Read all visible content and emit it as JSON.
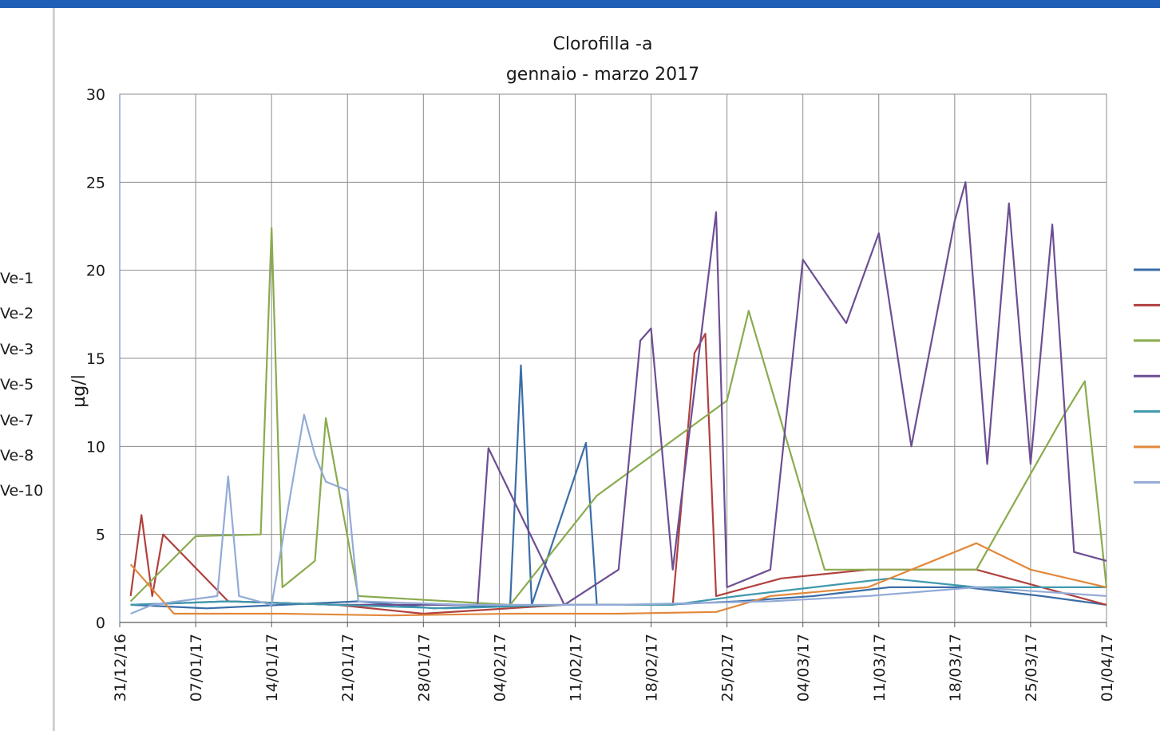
{
  "chart_data": {
    "type": "line",
    "title": "Clorofilla -a",
    "subtitle": "gennaio - marzo 2017",
    "ylabel": "µg/l",
    "xlabel": "",
    "ylim": [
      0,
      30
    ],
    "yticks": [
      0,
      5,
      10,
      15,
      20,
      25,
      30
    ],
    "xlim": [
      "2016-12-31",
      "2017-04-01"
    ],
    "xtick_labels": [
      "31/12/16",
      "07/01/17",
      "14/01/17",
      "21/01/17",
      "28/01/17",
      "04/02/17",
      "11/02/17",
      "18/02/17",
      "25/02/17",
      "04/03/17",
      "11/03/17",
      "18/03/17",
      "25/03/17",
      "01/04/17"
    ],
    "grid": true,
    "legend_position": "right",
    "series": [
      {
        "name": "Ve-1",
        "color": "#3a6ea8",
        "x": [
          "2017-01-01",
          "2017-01-08",
          "2017-01-15",
          "2017-01-22",
          "2017-01-29",
          "2017-02-05",
          "2017-02-06",
          "2017-02-07",
          "2017-02-12",
          "2017-02-13",
          "2017-02-19",
          "2017-02-26",
          "2017-03-05",
          "2017-03-12",
          "2017-03-19",
          "2017-03-26",
          "2017-04-01"
        ],
        "y": [
          1.0,
          0.8,
          1.0,
          1.2,
          0.8,
          1.0,
          14.6,
          1.0,
          10.2,
          1.0,
          1.0,
          1.2,
          1.5,
          2.0,
          2.0,
          1.5,
          1.0
        ]
      },
      {
        "name": "Ve-2",
        "color": "#b0413e",
        "x": [
          "2017-01-01",
          "2017-01-02",
          "2017-01-03",
          "2017-01-04",
          "2017-01-10",
          "2017-01-20",
          "2017-01-28",
          "2017-02-10",
          "2017-02-20",
          "2017-02-22",
          "2017-02-23",
          "2017-02-24",
          "2017-03-02",
          "2017-03-10",
          "2017-03-20",
          "2017-04-01"
        ],
        "y": [
          1.5,
          6.1,
          1.5,
          5.0,
          1.2,
          1.0,
          0.5,
          1.0,
          1.0,
          15.3,
          16.4,
          1.5,
          2.5,
          3.0,
          3.0,
          1.0
        ]
      },
      {
        "name": "Ve-3",
        "color": "#8aab4f",
        "x": [
          "2017-01-01",
          "2017-01-07",
          "2017-01-13",
          "2017-01-14",
          "2017-01-15",
          "2017-01-18",
          "2017-01-19",
          "2017-01-22",
          "2017-02-05",
          "2017-02-13",
          "2017-02-25",
          "2017-02-27",
          "2017-03-06",
          "2017-03-20",
          "2017-03-28",
          "2017-03-30",
          "2017-04-01"
        ],
        "y": [
          1.2,
          4.9,
          5.0,
          22.4,
          2.0,
          3.5,
          11.6,
          1.5,
          1.0,
          7.2,
          12.6,
          17.7,
          3.0,
          3.0,
          11.7,
          13.7,
          2.0
        ]
      },
      {
        "name": "Ve-5",
        "color": "#6d4e93",
        "x": [
          "2017-01-01",
          "2017-01-10",
          "2017-01-20",
          "2017-01-28",
          "2017-02-02",
          "2017-02-03",
          "2017-02-10",
          "2017-02-15",
          "2017-02-17",
          "2017-02-18",
          "2017-02-20",
          "2017-02-24",
          "2017-02-25",
          "2017-03-01",
          "2017-03-04",
          "2017-03-08",
          "2017-03-11",
          "2017-03-14",
          "2017-03-18",
          "2017-03-19",
          "2017-03-21",
          "2017-03-23",
          "2017-03-25",
          "2017-03-27",
          "2017-03-29",
          "2017-04-01"
        ],
        "y": [
          1.0,
          1.2,
          1.0,
          1.0,
          1.0,
          9.9,
          1.0,
          3.0,
          16.0,
          16.7,
          3.0,
          23.3,
          2.0,
          3.0,
          20.6,
          17.0,
          22.1,
          10.0,
          22.8,
          25.0,
          9.0,
          23.8,
          9.0,
          22.6,
          4.0,
          3.5
        ]
      },
      {
        "name": "Ve-7",
        "color": "#3f99ad",
        "x": [
          "2017-01-01",
          "2017-01-10",
          "2017-01-20",
          "2017-01-30",
          "2017-02-10",
          "2017-02-20",
          "2017-02-26",
          "2017-03-05",
          "2017-03-12",
          "2017-03-20",
          "2017-03-25",
          "2017-04-01"
        ],
        "y": [
          1.0,
          1.2,
          1.0,
          0.8,
          1.0,
          1.0,
          1.5,
          2.0,
          2.5,
          2.0,
          2.0,
          2.0
        ]
      },
      {
        "name": "Ve-8",
        "color": "#e2883b",
        "x": [
          "2017-01-01",
          "2017-01-05",
          "2017-01-15",
          "2017-01-25",
          "2017-02-05",
          "2017-02-15",
          "2017-02-24",
          "2017-03-01",
          "2017-03-10",
          "2017-03-16",
          "2017-03-20",
          "2017-03-25",
          "2017-04-01"
        ],
        "y": [
          3.3,
          0.5,
          0.5,
          0.4,
          0.5,
          0.5,
          0.6,
          1.5,
          2.0,
          3.5,
          4.5,
          3.0,
          2.0
        ]
      },
      {
        "name": "Ve-10",
        "color": "#93abd6",
        "x": [
          "2017-01-01",
          "2017-01-03",
          "2017-01-09",
          "2017-01-10",
          "2017-01-11",
          "2017-01-14",
          "2017-01-17",
          "2017-01-18",
          "2017-01-19",
          "2017-01-21",
          "2017-01-22",
          "2017-02-01",
          "2017-02-15",
          "2017-03-01",
          "2017-03-10",
          "2017-03-20",
          "2017-04-01"
        ],
        "y": [
          0.5,
          1.0,
          1.5,
          8.3,
          1.5,
          1.0,
          11.8,
          9.5,
          8.0,
          7.5,
          1.2,
          1.0,
          1.0,
          1.2,
          1.5,
          2.0,
          1.5
        ]
      }
    ]
  }
}
